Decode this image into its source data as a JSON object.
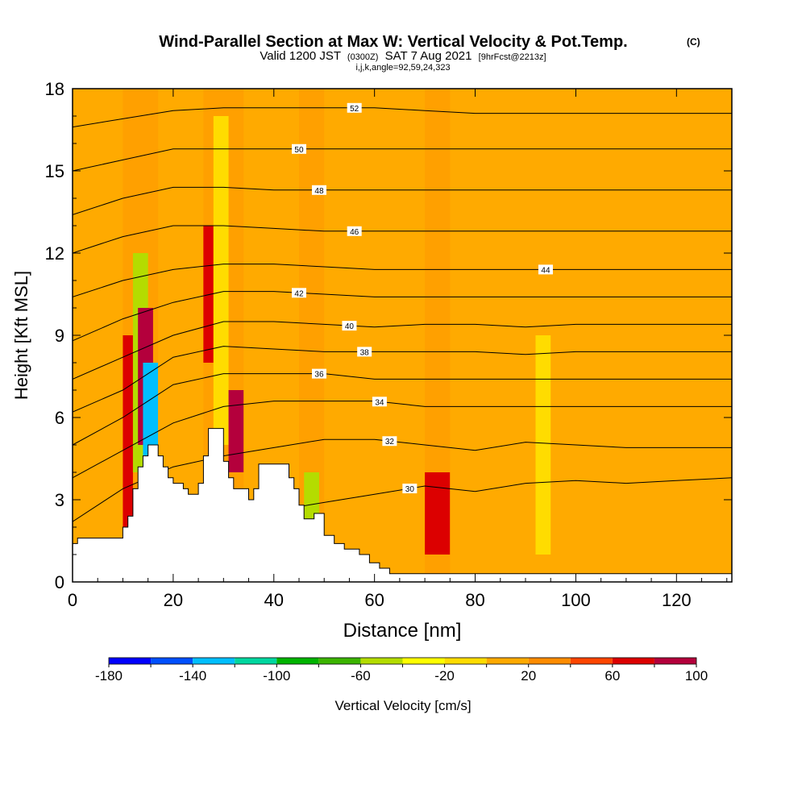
{
  "chart_data": {
    "type": "heatmap",
    "title": "Wind-Parallel Section at Max W: Vertical Velocity & Pot.Temp.",
    "title_mark": "(C)",
    "subtitle_main_a": "Valid 1200 JST",
    "subtitle_small_a": "(0300Z)",
    "subtitle_main_b": "SAT 7 Aug 2021",
    "subtitle_small_b": "[9hrFcst@2213z]",
    "subtitle_line2": "i,j,k,angle=92,59,24,323",
    "xlabel": "Distance [nm]",
    "ylabel": "Height [Kft MSL]",
    "xlim": [
      0,
      131
    ],
    "ylim": [
      0,
      18
    ],
    "x_ticks": [
      0,
      20,
      40,
      60,
      80,
      100,
      120
    ],
    "x_tick_labels": [
      "0",
      "20",
      "40",
      "60",
      "80",
      "100",
      "120"
    ],
    "y_ticks": [
      0,
      3,
      6,
      9,
      12,
      15,
      18
    ],
    "y_tick_labels": [
      "0",
      "3",
      "6",
      "9",
      "12",
      "15",
      "18"
    ],
    "colorbar": {
      "label": "Vertical Velocity [cm/s]",
      "tick_labels": [
        "-180",
        "-140",
        "-100",
        "-60",
        "-20",
        "20",
        "60",
        "100"
      ],
      "tick_values": [
        -180,
        -140,
        -100,
        -60,
        -20,
        20,
        60,
        100
      ],
      "bins": [
        -180,
        -160,
        -140,
        -120,
        -100,
        -80,
        -60,
        -40,
        -20,
        0,
        20,
        40,
        60,
        80,
        100
      ],
      "colors": [
        "#0000ff",
        "#0050ff",
        "#00bfff",
        "#00d7a0",
        "#00b400",
        "#3cb400",
        "#b4dc00",
        "#ffff00",
        "#ffdc00",
        "#ffaa00",
        "#ff8c00",
        "#ff4600",
        "#dc0000",
        "#b4003c",
        "#780078"
      ]
    },
    "terrain_kft": [
      [
        0,
        1.4
      ],
      [
        1,
        1.4
      ],
      [
        1,
        1.6
      ],
      [
        10,
        1.6
      ],
      [
        10,
        2.0
      ],
      [
        11,
        2.0
      ],
      [
        11,
        2.4
      ],
      [
        12,
        2.4
      ],
      [
        12,
        3.4
      ],
      [
        13,
        3.4
      ],
      [
        13,
        4.2
      ],
      [
        14,
        4.2
      ],
      [
        14,
        4.6
      ],
      [
        15,
        4.6
      ],
      [
        15,
        5.0
      ],
      [
        17,
        5.0
      ],
      [
        17,
        4.6
      ],
      [
        18,
        4.6
      ],
      [
        18,
        4.2
      ],
      [
        19,
        4.2
      ],
      [
        19,
        3.8
      ],
      [
        20,
        3.8
      ],
      [
        20,
        3.6
      ],
      [
        22,
        3.6
      ],
      [
        22,
        3.4
      ],
      [
        23,
        3.4
      ],
      [
        23,
        3.2
      ],
      [
        25,
        3.2
      ],
      [
        25,
        3.6
      ],
      [
        26,
        3.6
      ],
      [
        26,
        4.6
      ],
      [
        27,
        4.6
      ],
      [
        27,
        5.6
      ],
      [
        30,
        5.6
      ],
      [
        30,
        4.4
      ],
      [
        31,
        4.4
      ],
      [
        31,
        3.8
      ],
      [
        32,
        3.8
      ],
      [
        32,
        3.4
      ],
      [
        35,
        3.4
      ],
      [
        35,
        3.0
      ],
      [
        36,
        3.0
      ],
      [
        36,
        3.4
      ],
      [
        37,
        3.4
      ],
      [
        37,
        4.3
      ],
      [
        43,
        4.3
      ],
      [
        43,
        3.8
      ],
      [
        44,
        3.8
      ],
      [
        44,
        3.4
      ],
      [
        45,
        3.4
      ],
      [
        45,
        2.8
      ],
      [
        46,
        2.8
      ],
      [
        46,
        2.3
      ],
      [
        48,
        2.3
      ],
      [
        48,
        2.5
      ],
      [
        50,
        2.5
      ],
      [
        50,
        1.7
      ],
      [
        52,
        1.7
      ],
      [
        52,
        1.4
      ],
      [
        54,
        1.4
      ],
      [
        54,
        1.2
      ],
      [
        57,
        1.2
      ],
      [
        57,
        1.0
      ],
      [
        59,
        1.0
      ],
      [
        59,
        0.7
      ],
      [
        61,
        0.7
      ],
      [
        61,
        0.5
      ],
      [
        63,
        0.5
      ],
      [
        63,
        0.3
      ],
      [
        131,
        0.3
      ]
    ],
    "theta_contours": [
      {
        "label": "30",
        "x": [
          0,
          10,
          20,
          30,
          40,
          50,
          60,
          70,
          80,
          90,
          100,
          110,
          120,
          131
        ],
        "y": [
          0.5,
          1.2,
          1.8,
          2.2,
          2.6,
          2.9,
          3.2,
          3.5,
          3.3,
          3.6,
          3.7,
          3.6,
          3.7,
          3.8
        ],
        "label_x": 67
      },
      {
        "label": "32",
        "x": [
          0,
          10,
          20,
          30,
          40,
          50,
          60,
          70,
          80,
          90,
          100,
          110,
          120,
          131
        ],
        "y": [
          2.2,
          3.4,
          4.2,
          4.6,
          4.9,
          5.2,
          5.2,
          5.0,
          4.8,
          5.1,
          5.0,
          4.9,
          4.9,
          4.9
        ],
        "label_x": 63
      },
      {
        "label": "34",
        "x": [
          0,
          10,
          20,
          30,
          40,
          50,
          60,
          70,
          80,
          90,
          100,
          110,
          120,
          131
        ],
        "y": [
          3.8,
          4.8,
          5.8,
          6.4,
          6.6,
          6.6,
          6.6,
          6.4,
          6.4,
          6.4,
          6.4,
          6.4,
          6.4,
          6.4
        ],
        "label_x": 61
      },
      {
        "label": "36",
        "x": [
          0,
          10,
          20,
          30,
          40,
          50,
          60,
          70,
          80,
          90,
          100,
          110,
          120,
          131
        ],
        "y": [
          5.0,
          6.0,
          7.2,
          7.6,
          7.6,
          7.6,
          7.4,
          7.4,
          7.4,
          7.4,
          7.4,
          7.4,
          7.4,
          7.4
        ],
        "label_x": 49
      },
      {
        "label": "38",
        "x": [
          0,
          10,
          20,
          30,
          40,
          50,
          60,
          70,
          80,
          90,
          100,
          110,
          120,
          131
        ],
        "y": [
          6.2,
          7.0,
          8.2,
          8.6,
          8.5,
          8.4,
          8.4,
          8.4,
          8.4,
          8.3,
          8.4,
          8.4,
          8.4,
          8.4
        ],
        "label_x": 58
      },
      {
        "label": "40",
        "x": [
          0,
          10,
          20,
          30,
          40,
          50,
          60,
          70,
          80,
          90,
          100,
          110,
          120,
          131
        ],
        "y": [
          7.4,
          8.2,
          9.0,
          9.5,
          9.5,
          9.4,
          9.3,
          9.4,
          9.4,
          9.3,
          9.4,
          9.4,
          9.4,
          9.4
        ],
        "label_x": 55
      },
      {
        "label": "42",
        "x": [
          0,
          10,
          20,
          30,
          40,
          50,
          60,
          70,
          80,
          90,
          100,
          110,
          120,
          131
        ],
        "y": [
          8.8,
          9.6,
          10.2,
          10.6,
          10.6,
          10.5,
          10.4,
          10.4,
          10.4,
          10.4,
          10.4,
          10.4,
          10.4,
          10.4
        ],
        "label_x": 45
      },
      {
        "label": "44",
        "x": [
          0,
          10,
          20,
          30,
          40,
          50,
          60,
          70,
          80,
          90,
          100,
          110,
          120,
          131
        ],
        "y": [
          10.4,
          11.0,
          11.4,
          11.6,
          11.6,
          11.5,
          11.4,
          11.4,
          11.4,
          11.4,
          11.4,
          11.4,
          11.4,
          11.4
        ],
        "label_x": 94
      },
      {
        "label": "46",
        "x": [
          0,
          10,
          20,
          30,
          40,
          50,
          60,
          70,
          80,
          90,
          100,
          110,
          120,
          131
        ],
        "y": [
          12.0,
          12.6,
          13.0,
          13.0,
          12.9,
          12.8,
          12.8,
          12.8,
          12.8,
          12.8,
          12.8,
          12.8,
          12.8,
          12.8
        ],
        "label_x": 56
      },
      {
        "label": "48",
        "x": [
          0,
          10,
          20,
          30,
          40,
          50,
          60,
          70,
          80,
          90,
          100,
          110,
          120,
          131
        ],
        "y": [
          13.4,
          14.0,
          14.4,
          14.4,
          14.3,
          14.3,
          14.3,
          14.3,
          14.3,
          14.3,
          14.3,
          14.3,
          14.3,
          14.3
        ],
        "label_x": 49
      },
      {
        "label": "50",
        "x": [
          0,
          10,
          20,
          30,
          40,
          50,
          60,
          70,
          80,
          90,
          100,
          110,
          120,
          131
        ],
        "y": [
          15.0,
          15.4,
          15.8,
          15.8,
          15.8,
          15.8,
          15.8,
          15.8,
          15.8,
          15.8,
          15.8,
          15.8,
          15.8,
          15.8
        ],
        "label_x": 45
      },
      {
        "label": "52",
        "x": [
          0,
          10,
          20,
          30,
          40,
          50,
          60,
          70,
          80,
          90,
          100,
          110,
          120,
          131
        ],
        "y": [
          16.6,
          16.9,
          17.2,
          17.3,
          17.3,
          17.3,
          17.3,
          17.2,
          17.1,
          17.1,
          17.1,
          17.1,
          17.1,
          17.1
        ],
        "label_x": 56
      }
    ],
    "velocity_cells": [
      {
        "x": [
          0,
          10
        ],
        "y": [
          0,
          18
        ],
        "value": 10
      },
      {
        "x": [
          10,
          12
        ],
        "y": [
          2,
          9
        ],
        "value": 60
      },
      {
        "x": [
          12,
          15
        ],
        "y": [
          4,
          12
        ],
        "value": -60
      },
      {
        "x": [
          13,
          16
        ],
        "y": [
          5,
          10
        ],
        "value": 80
      },
      {
        "x": [
          14,
          17
        ],
        "y": [
          4,
          8
        ],
        "value": -140
      },
      {
        "x": [
          17,
          26
        ],
        "y": [
          0,
          18
        ],
        "value": 10
      },
      {
        "x": [
          26,
          28
        ],
        "y": [
          8,
          13
        ],
        "value": 60
      },
      {
        "x": [
          28,
          31
        ],
        "y": [
          5,
          17
        ],
        "value": -20
      },
      {
        "x": [
          31,
          34
        ],
        "y": [
          4,
          7
        ],
        "value": 80
      },
      {
        "x": [
          34,
          45
        ],
        "y": [
          0,
          18
        ],
        "value": 10
      },
      {
        "x": [
          46,
          49
        ],
        "y": [
          2,
          4
        ],
        "value": -60
      },
      {
        "x": [
          50,
          70
        ],
        "y": [
          0,
          18
        ],
        "value": 10
      },
      {
        "x": [
          70,
          75
        ],
        "y": [
          1,
          4
        ],
        "value": 60
      },
      {
        "x": [
          75,
          100
        ],
        "y": [
          0,
          18
        ],
        "value": 10
      },
      {
        "x": [
          92,
          95
        ],
        "y": [
          1,
          9
        ],
        "value": -20
      },
      {
        "x": [
          100,
          131
        ],
        "y": [
          0,
          18
        ],
        "value": 10
      }
    ]
  }
}
